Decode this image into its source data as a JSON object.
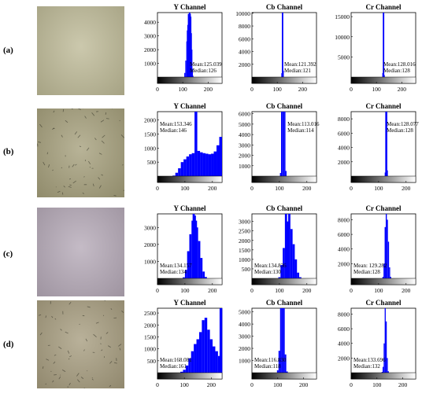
{
  "colors": {
    "bar": "#0000ff",
    "axis": "#000000",
    "photo_a": "#bdb996",
    "photo_b": "#a49e7a",
    "photo_c": "#b4a8b6",
    "photo_d": "#a59b7d"
  },
  "rows": [
    {
      "label": "(a)",
      "image_desc": "microscope-field",
      "channels": [
        {
          "title": "Y Channel",
          "mean": "Mean:125.039",
          "median": "Median:126"
        },
        {
          "title": "Cb Channel",
          "mean": "Mean:121.392",
          "median": "Median:121"
        },
        {
          "title": "Cr Channel",
          "mean": "Mean:128.016",
          "median": "Median:128"
        }
      ]
    },
    {
      "label": "(b)",
      "image_desc": "microscope-field",
      "channels": [
        {
          "title": "Y Channel",
          "mean": "Mean:153.346",
          "median": "Median:146"
        },
        {
          "title": "Cb Channel",
          "mean": "Mean:113.016",
          "median": "Median:114"
        },
        {
          "title": "Cr Channel",
          "mean": "Mean:128.077",
          "median": "Median:128"
        }
      ]
    },
    {
      "label": "(c)",
      "image_desc": "microscope-field",
      "channels": [
        {
          "title": "Y Channel",
          "mean": "Mean:134.157",
          "median": "Median:134"
        },
        {
          "title": "Cb Channel",
          "mean": "Mean:134.836",
          "median": "Median:130"
        },
        {
          "title": "Cr Channel",
          "mean": "Mean: 129.282",
          "median": "Median:128"
        }
      ]
    },
    {
      "label": "(d)",
      "image_desc": "microscope-field",
      "channels": [
        {
          "title": "Y Channel",
          "mean": "Mean:168.081",
          "median": "Median:161"
        },
        {
          "title": "Cb Channel",
          "mean": "Mean:116.830",
          "median": "Median:118"
        },
        {
          "title": "Cr Channel",
          "mean": "Mean:133.696",
          "median": "Median:132"
        }
      ]
    }
  ],
  "chart_data": [
    {
      "row": "(a)",
      "type": "bar",
      "title": "Y Channel",
      "xlim": [
        0,
        255
      ],
      "ylim": [
        0,
        4700
      ],
      "xticks": [
        0,
        100,
        200
      ],
      "yticks": [
        1000,
        2000,
        3000,
        4000
      ],
      "x": [
        108,
        112,
        116,
        118,
        120,
        122,
        124,
        126,
        128,
        130,
        132,
        134,
        136,
        138,
        140
      ],
      "values": [
        300,
        1200,
        2600,
        3400,
        3800,
        4600,
        4600,
        4700,
        4700,
        4600,
        4400,
        3200,
        2000,
        600,
        100
      ]
    },
    {
      "row": "(a)",
      "type": "bar",
      "title": "Cb Channel",
      "xlim": [
        0,
        255
      ],
      "ylim": [
        0,
        10100
      ],
      "xticks": [
        0,
        100,
        200
      ],
      "yticks": [
        2000,
        4000,
        6000,
        8000,
        10000
      ],
      "x": [
        118,
        120,
        122,
        124
      ],
      "values": [
        600,
        10100,
        10100,
        1000
      ]
    },
    {
      "row": "(a)",
      "type": "bar",
      "title": "Cr Channel",
      "xlim": [
        0,
        255
      ],
      "ylim": [
        0,
        16000
      ],
      "xticks": [
        0,
        100,
        200
      ],
      "yticks": [
        5000,
        10000,
        15000
      ],
      "x": [
        125,
        127,
        129,
        131
      ],
      "values": [
        1000,
        16000,
        16000,
        500
      ]
    },
    {
      "row": "(b)",
      "type": "bar",
      "title": "Y Channel",
      "xlim": [
        0,
        235
      ],
      "ylim": [
        0,
        2300
      ],
      "xticks": [
        0,
        100,
        200
      ],
      "yticks": [
        500,
        1000,
        1500,
        2000
      ],
      "x": [
        60,
        70,
        80,
        90,
        100,
        110,
        120,
        130,
        140,
        150,
        160,
        170,
        180,
        190,
        200,
        210,
        220,
        230
      ],
      "values": [
        20,
        120,
        280,
        500,
        600,
        700,
        780,
        820,
        2300,
        900,
        850,
        820,
        800,
        780,
        800,
        880,
        1100,
        1400
      ]
    },
    {
      "row": "(b)",
      "type": "bar",
      "title": "Cb Channel",
      "xlim": [
        0,
        235
      ],
      "ylim": [
        0,
        6200
      ],
      "xticks": [
        0,
        100,
        200
      ],
      "yticks": [
        1000,
        2000,
        3000,
        4000,
        5000,
        6000
      ],
      "x": [
        104,
        108,
        112,
        116,
        120,
        124
      ],
      "values": [
        300,
        6200,
        6200,
        6200,
        6200,
        500
      ]
    },
    {
      "row": "(b)",
      "type": "bar",
      "title": "Cr Channel",
      "xlim": [
        0,
        235
      ],
      "ylim": [
        0,
        9000
      ],
      "xticks": [
        0,
        100,
        200
      ],
      "yticks": [
        2000,
        4000,
        6000,
        8000
      ],
      "x": [
        124,
        126,
        128,
        130,
        132
      ],
      "values": [
        500,
        9000,
        9000,
        9000,
        800
      ]
    },
    {
      "row": "(c)",
      "type": "bar",
      "title": "Y Channel",
      "xlim": [
        0,
        235
      ],
      "ylim": [
        0,
        3800
      ],
      "xticks": [
        0,
        100,
        200
      ],
      "yticks": [
        1000,
        2000,
        3000
      ],
      "x": [
        96,
        104,
        112,
        120,
        128,
        132,
        136,
        140,
        144,
        152,
        160,
        168,
        176
      ],
      "values": [
        60,
        500,
        1600,
        2600,
        3400,
        3800,
        3700,
        3400,
        3000,
        2200,
        1200,
        400,
        80
      ]
    },
    {
      "row": "(c)",
      "type": "bar",
      "title": "Cb Channel",
      "xlim": [
        0,
        235
      ],
      "ylim": [
        0,
        3400
      ],
      "xticks": [
        0,
        100,
        200
      ],
      "yticks": [
        500,
        1000,
        1500,
        2000,
        2500,
        3000
      ],
      "x": [
        100,
        108,
        116,
        124,
        130,
        136,
        144,
        152,
        160,
        168,
        176
      ],
      "values": [
        60,
        700,
        1600,
        3400,
        3000,
        3400,
        2600,
        1800,
        1000,
        300,
        60
      ]
    },
    {
      "row": "(c)",
      "type": "bar",
      "title": "Cr Channel",
      "xlim": [
        0,
        235
      ],
      "ylim": [
        0,
        8800
      ],
      "xticks": [
        0,
        100,
        200
      ],
      "yticks": [
        2000,
        4000,
        6000,
        8000
      ],
      "x": [
        116,
        120,
        124,
        128,
        132,
        136,
        140,
        144
      ],
      "values": [
        200,
        2000,
        7000,
        8800,
        8000,
        5000,
        1500,
        200
      ]
    },
    {
      "row": "(d)",
      "type": "bar",
      "title": "Y Channel",
      "xlim": [
        0,
        240
      ],
      "ylim": [
        0,
        2700
      ],
      "xticks": [
        0,
        100,
        200
      ],
      "yticks": [
        500,
        1000,
        1500,
        2000,
        2500
      ],
      "x": [
        90,
        100,
        110,
        120,
        130,
        140,
        150,
        160,
        170,
        180,
        190,
        200,
        210,
        220,
        230,
        236
      ],
      "values": [
        40,
        120,
        300,
        600,
        900,
        1200,
        1400,
        1700,
        2200,
        2300,
        1800,
        1400,
        1100,
        900,
        700,
        2700
      ]
    },
    {
      "row": "(d)",
      "type": "bar",
      "title": "Cb Channel",
      "xlim": [
        0,
        250
      ],
      "ylim": [
        0,
        5300
      ],
      "xticks": [
        0,
        100,
        200
      ],
      "yticks": [
        1000,
        2000,
        3000,
        4000,
        5000
      ],
      "x": [
        100,
        106,
        112,
        118,
        124,
        130,
        136
      ],
      "values": [
        200,
        1800,
        5300,
        5300,
        5300,
        1500,
        100
      ]
    },
    {
      "row": "(d)",
      "type": "bar",
      "title": "Cr Channel",
      "xlim": [
        0,
        250
      ],
      "ylim": [
        0,
        8800
      ],
      "xticks": [
        0,
        100,
        200
      ],
      "yticks": [
        2000,
        4000,
        6000,
        8000
      ],
      "x": [
        120,
        124,
        128,
        132,
        136,
        140,
        144
      ],
      "values": [
        100,
        800,
        4000,
        8800,
        7000,
        2000,
        200
      ]
    }
  ]
}
